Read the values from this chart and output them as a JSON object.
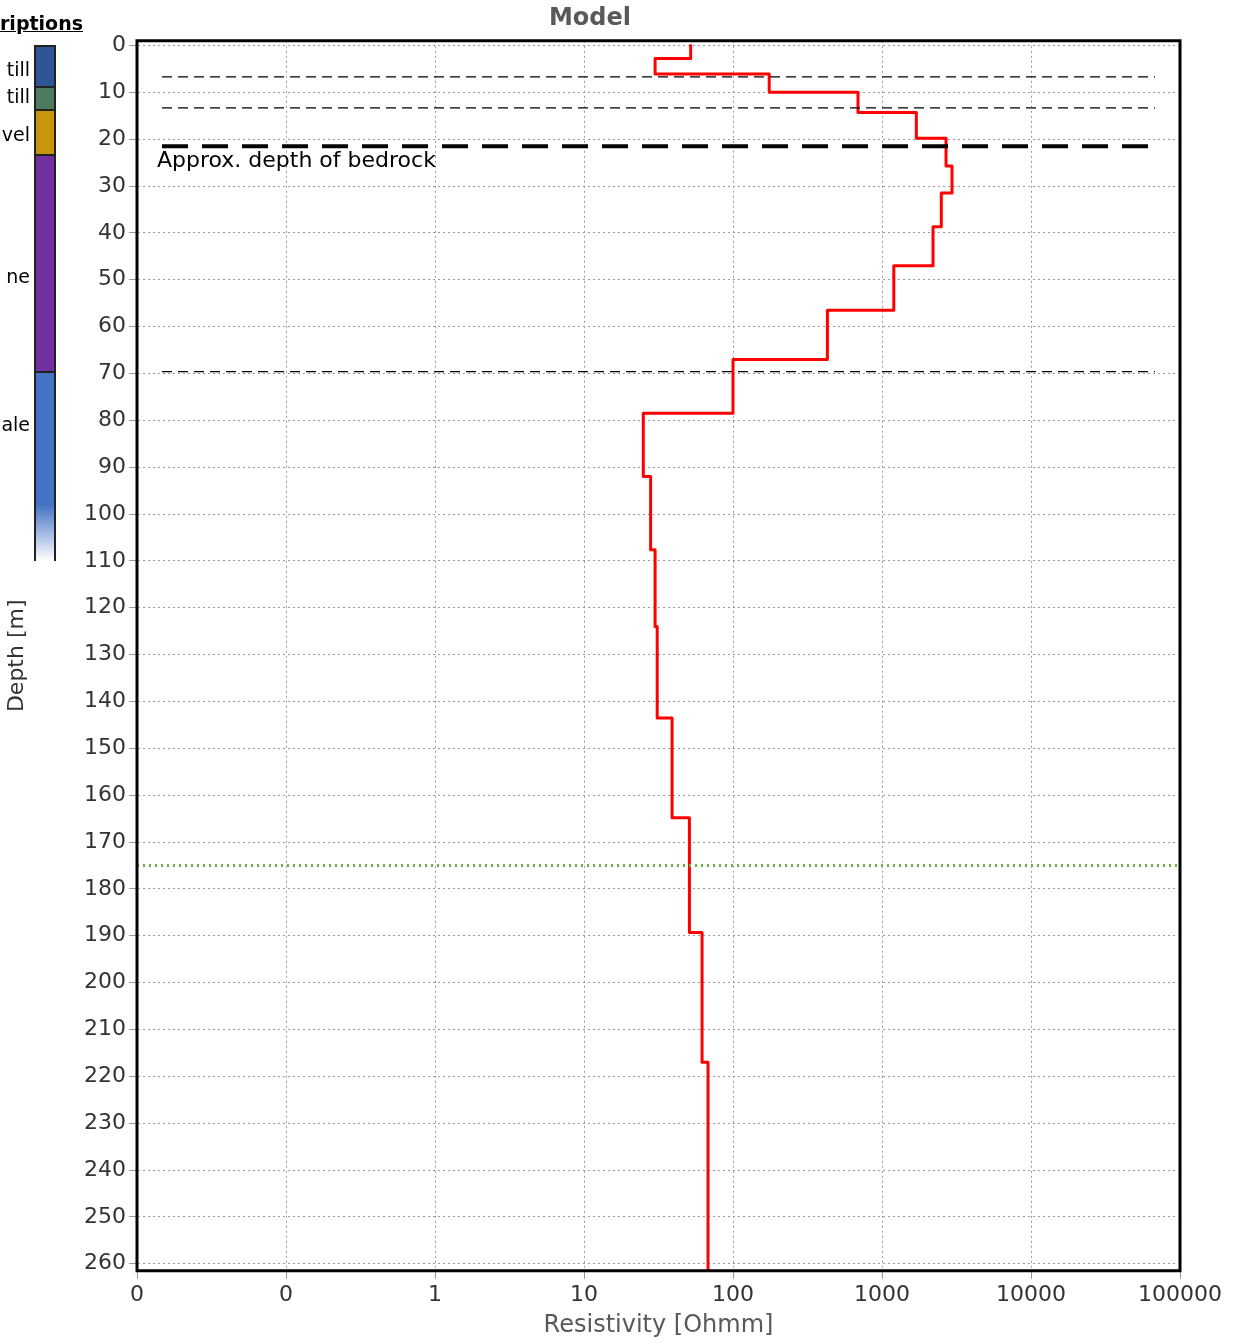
{
  "chart_data": {
    "type": "line",
    "title": "Model",
    "xlabel": "Resistivity [Ohmm]",
    "ylabel": "Depth [m]",
    "log": "x",
    "grid": true,
    "marker": "none",
    "line_style": "solid",
    "xlim": [
      0.01,
      100000
    ],
    "xticks": [
      {
        "value": 0.01,
        "label": "0"
      },
      {
        "value": 0.1,
        "label": "0"
      },
      1,
      10,
      100,
      1000,
      10000,
      100000
    ],
    "ylim": [
      261.5,
      -1
    ],
    "yticks": [
      0,
      10,
      20,
      30,
      40,
      50,
      60,
      70,
      80,
      90,
      100,
      110,
      120,
      130,
      140,
      150,
      160,
      170,
      180,
      190,
      200,
      210,
      220,
      230,
      240,
      250,
      260
    ],
    "series": [
      {
        "color": "#ff0000",
        "x": [
          52,
          52,
          30,
          30,
          175,
          175,
          690,
          690,
          1700,
          1700,
          2690,
          2690,
          2950,
          2950,
          2500,
          2500,
          2200,
          2200,
          1200,
          1200,
          430,
          430,
          100,
          100,
          25,
          25,
          28,
          28,
          30,
          30,
          31,
          31,
          39,
          39,
          51,
          51,
          62,
          62,
          68,
          68
        ],
        "values": [
          0,
          2.8,
          2.8,
          6.1,
          6.1,
          10,
          10,
          14.3,
          14.3,
          19.8,
          19.8,
          25.7,
          25.7,
          31.5,
          31.5,
          38.7,
          38.7,
          47,
          47,
          56.5,
          56.5,
          67,
          67,
          78.5,
          78.5,
          92,
          92,
          107.6,
          107.6,
          124,
          124,
          143.5,
          143.5,
          164.8,
          164.8,
          189.3,
          189.3,
          217,
          217,
          261.5
        ]
      }
    ],
    "ref_lines": [
      {
        "axis": "y",
        "value": 6.7,
        "color": "#000000",
        "line_style": "dashed"
      },
      {
        "axis": "y",
        "value": 13.3,
        "color": "#000000",
        "line_style": "dashed"
      },
      {
        "axis": "y",
        "value": 21.5,
        "color": "#000000",
        "line_style": "dashed",
        "label": "Approx. depth of bedrock"
      },
      {
        "axis": "y",
        "value": 69.6,
        "color": "#000000",
        "line_style": "dashed"
      },
      {
        "axis": "y",
        "value": 175,
        "color": "#70ad47",
        "line_style": "dotted"
      }
    ],
    "annotations": [
      "riptions",
      "till",
      "till",
      "vel",
      "ne",
      "ale"
    ]
  }
}
